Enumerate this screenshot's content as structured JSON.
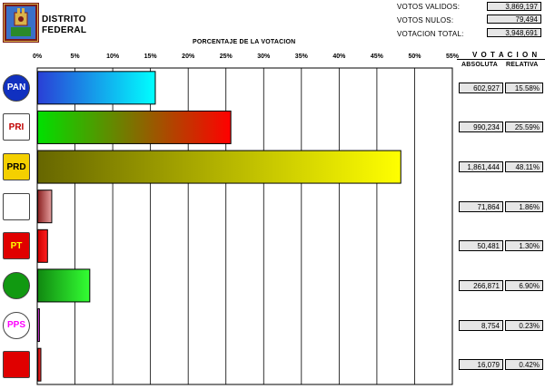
{
  "header": {
    "line1": "DISTRITO",
    "line2": "FEDERAL",
    "crest_icon": "coat-of-arms-icon"
  },
  "stats": [
    {
      "label": "VOTOS VALIDOS:",
      "value": "3,869,197"
    },
    {
      "label": "VOTOS NULOS:",
      "value": "79,494"
    },
    {
      "label": "VOTACION TOTAL:",
      "value": "3,948,691"
    }
  ],
  "table_header": {
    "title": "V O T A C I O N",
    "col_abs": "ABSOLUTA",
    "col_rel": "RELATIVA"
  },
  "chart_data": {
    "type": "bar",
    "orientation": "horizontal",
    "title": "PORCENTAJE DE LA VOTACION",
    "xlim": [
      0,
      55
    ],
    "ticks": [
      "0%",
      "5%",
      "10%",
      "15%",
      "20%",
      "25%",
      "30%",
      "35%",
      "40%",
      "45%",
      "50%",
      "55%"
    ],
    "tick_values": [
      0,
      5,
      10,
      15,
      20,
      25,
      30,
      35,
      40,
      45,
      50,
      55
    ],
    "grid": true,
    "categories": [
      "PAN",
      "PRI",
      "PRD",
      "PC",
      "PT",
      "PVEM",
      "PPS",
      "PDM"
    ],
    "values": [
      15.58,
      25.59,
      48.11,
      1.86,
      1.3,
      6.9,
      0.23,
      0.42
    ],
    "absolute": [
      "602,927",
      "990,234",
      "1,861,444",
      "71,864",
      "50,481",
      "266,871",
      "8,754",
      "16,079"
    ],
    "relative": [
      "15.58%",
      "25.59%",
      "48.11%",
      "1.86%",
      "1.30%",
      "6.90%",
      "0.23%",
      "0.42%"
    ],
    "gradients": [
      [
        "#2a3fd6",
        "#00ffff"
      ],
      [
        "#00e000",
        "#ff0000"
      ],
      [
        "#666600",
        "#ffff00"
      ],
      [
        "#8a2020",
        "#e6a0a0"
      ],
      [
        "#cc0000",
        "#ff2020"
      ],
      [
        "#118811",
        "#33ff33"
      ],
      [
        "#9900aa",
        "#ff66ff"
      ],
      [
        "#aa0000",
        "#ff3333"
      ]
    ]
  },
  "party_logos": [
    {
      "icon": "pan-logo-icon",
      "text": "PAN",
      "bg": "#1030c0",
      "fg": "#ffffff"
    },
    {
      "icon": "pri-logo-icon",
      "text": "PRI",
      "bg": "#ffffff",
      "fg": "#c00000"
    },
    {
      "icon": "prd-logo-icon",
      "text": "PRD",
      "bg": "#f4d000",
      "fg": "#000000"
    },
    {
      "icon": "pc-logo-icon",
      "text": "",
      "bg": "#ffffff",
      "fg": "#b00000"
    },
    {
      "icon": "pt-logo-icon",
      "text": "PT",
      "bg": "#e00000",
      "fg": "#ffff00"
    },
    {
      "icon": "pvem-logo-icon",
      "text": "",
      "bg": "#119911",
      "fg": "#ffffff"
    },
    {
      "icon": "pps-logo-icon",
      "text": "PPS",
      "bg": "#ffffff",
      "fg": "#ff00ff"
    },
    {
      "icon": "pdm-logo-icon",
      "text": "",
      "bg": "#e00000",
      "fg": "#ffffff"
    }
  ]
}
